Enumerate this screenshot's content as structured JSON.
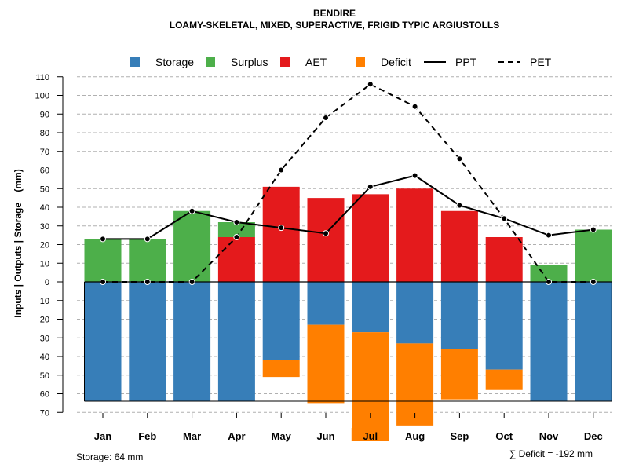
{
  "chart_data": {
    "type": "bar",
    "title": "BENDIRE",
    "subtitle": "LOAMY-SKELETAL, MIXED, SUPERACTIVE, FRIGID TYPIC ARGIUSTOLLS",
    "ylabel": "Inputs | Outputs | Storage    (mm)",
    "ylim": [
      -70,
      110
    ],
    "ytick_values": [
      110,
      100,
      90,
      80,
      70,
      60,
      50,
      40,
      30,
      20,
      10,
      0,
      -10,
      -20,
      -30,
      -40,
      -50,
      -60,
      -70
    ],
    "ytick_labels": [
      "110",
      "100",
      "90",
      "80",
      "70",
      "60",
      "50",
      "40",
      "30",
      "20",
      "10",
      "0",
      "10",
      "20",
      "30",
      "40",
      "50",
      "60",
      "70"
    ],
    "grid": true,
    "legend_position": "top",
    "categories": [
      "Jan",
      "Feb",
      "Mar",
      "Apr",
      "May",
      "Jun",
      "Jul",
      "Aug",
      "Sep",
      "Oct",
      "Nov",
      "Dec"
    ],
    "highlight_category": "Jul",
    "legend": [
      {
        "name": "Storage",
        "kind": "box",
        "color": "#377EB8"
      },
      {
        "name": "Surplus",
        "kind": "box",
        "color": "#4DAF4A"
      },
      {
        "name": "AET",
        "kind": "box",
        "color": "#E41A1C"
      },
      {
        "name": "Deficit",
        "kind": "box",
        "color": "#FF7F00"
      },
      {
        "name": "PPT",
        "kind": "solid-line",
        "color": "#000000"
      },
      {
        "name": "PET",
        "kind": "dashed-line",
        "color": "#000000"
      }
    ],
    "series": [
      {
        "name": "Storage",
        "color": "#377EB8",
        "values": [
          64,
          64,
          64,
          64,
          42,
          23,
          27,
          33,
          36,
          47,
          64,
          64
        ]
      },
      {
        "name": "Surplus",
        "color": "#4DAF4A",
        "values": [
          23,
          23,
          38,
          8,
          0,
          0,
          0,
          0,
          0,
          0,
          9,
          28
        ]
      },
      {
        "name": "AET",
        "color": "#E41A1C",
        "values": [
          0,
          0,
          0,
          24,
          51,
          45,
          47,
          50,
          38,
          24,
          0,
          0
        ]
      },
      {
        "name": "Deficit",
        "color": "#FF7F00",
        "values": [
          0,
          0,
          0,
          0,
          9,
          42,
          57,
          44,
          27,
          11,
          0,
          0
        ]
      },
      {
        "name": "PPT",
        "color": "#000000",
        "values": [
          23,
          23,
          38,
          32,
          29,
          26,
          51,
          57,
          41,
          34,
          25,
          28
        ]
      },
      {
        "name": "PET",
        "color": "#000000",
        "values": [
          0,
          0,
          0,
          24,
          60,
          88,
          106,
          94,
          66,
          34,
          0,
          0
        ]
      }
    ],
    "storage_capacity": 64,
    "storage_note": "Storage: 64 mm",
    "deficit_note": "∑ Deficit = -192 mm"
  }
}
